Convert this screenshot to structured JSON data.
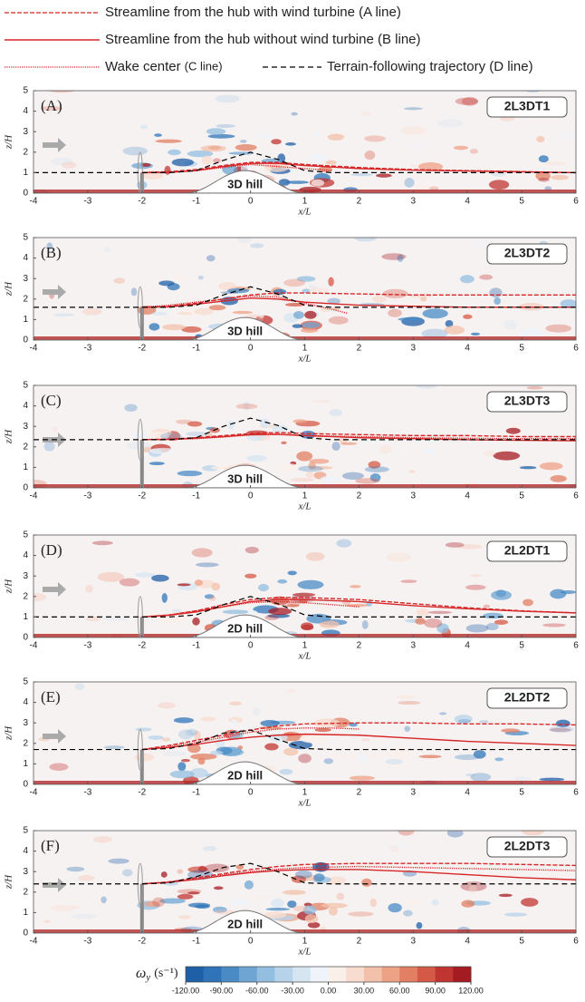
{
  "legend": [
    {
      "name": "Streamline from the hub with wind turbine (A line)",
      "color": "#d62728",
      "dash": "5 2"
    },
    {
      "name": "Streamline from the hub without wind turbine (B line)",
      "color": "#d62728",
      "dash": ""
    },
    {
      "name": "Wake center",
      "suffix": "(C line)",
      "color": "#d62728",
      "dash": "1.2 1.2"
    },
    {
      "name": "Terrain-following trajectory (D line)",
      "color": "#000000",
      "dash": "6 4"
    }
  ],
  "chart_data": [
    {
      "type": "line",
      "panel": "(A)",
      "case": "2L3DT1",
      "hill_label": "3D hill",
      "xlabel": "x/L",
      "ylabel": "z/H",
      "xlim": [
        -4,
        6
      ],
      "ylim": [
        0,
        5
      ],
      "xticks": [
        -4,
        -3,
        -2,
        -1,
        0,
        1,
        2,
        3,
        4,
        5,
        6
      ],
      "yticks": [
        0,
        1,
        2,
        3,
        4,
        5
      ],
      "series": [
        {
          "x": [
            -2,
            -1.5,
            -1,
            -0.5,
            0,
            0.5,
            1,
            2,
            3,
            4,
            5,
            6
          ],
          "values": [
            1,
            1.05,
            1.15,
            1.35,
            1.5,
            1.5,
            1.4,
            1.25,
            1.15,
            1.1,
            1.05,
            1.0
          ]
        },
        {
          "x": [
            -2,
            -1.5,
            -1,
            -0.5,
            0,
            0.5,
            1,
            2,
            3,
            4,
            5,
            6
          ],
          "values": [
            1,
            1.02,
            1.1,
            1.3,
            1.45,
            1.45,
            1.35,
            1.2,
            1.12,
            1.08,
            1.04,
            1.0
          ]
        },
        {
          "x": [
            -2,
            -1.5,
            -1,
            -0.5,
            0,
            0.5,
            1,
            1.5
          ],
          "values": [
            1,
            1.0,
            1.1,
            1.25,
            1.4,
            1.3,
            1.2,
            1.1
          ]
        },
        {
          "x": [
            -4,
            -2,
            -1.5,
            -1,
            -0.5,
            0,
            0.5,
            1,
            1.5,
            2,
            6
          ],
          "values": [
            1,
            1,
            1,
            1.1,
            1.6,
            2.0,
            1.65,
            1.1,
            1,
            1,
            1
          ]
        }
      ]
    },
    {
      "type": "line",
      "panel": "(B)",
      "case": "2L3DT2",
      "hill_label": "3D hill",
      "xlabel": "x/L",
      "ylabel": "z/H",
      "xlim": [
        -4,
        6
      ],
      "ylim": [
        0,
        5
      ],
      "xticks": [
        -4,
        -3,
        -2,
        -1,
        0,
        1,
        2,
        3,
        4,
        5,
        6
      ],
      "yticks": [
        0,
        1,
        2,
        3,
        4,
        5
      ],
      "series": [
        {
          "x": [
            -2,
            -1.5,
            -1,
            -0.5,
            0,
            0.5,
            1,
            2,
            3,
            4,
            5,
            6
          ],
          "values": [
            1.6,
            1.65,
            1.8,
            2.0,
            2.2,
            2.3,
            2.3,
            2.25,
            2.2,
            2.2,
            2.2,
            2.2
          ]
        },
        {
          "x": [
            -2,
            -1.5,
            -1,
            -0.5,
            0,
            0.5,
            1,
            2,
            3,
            4,
            5,
            6
          ],
          "values": [
            1.6,
            1.62,
            1.75,
            1.9,
            2.05,
            2.0,
            1.85,
            1.7,
            1.65,
            1.6,
            1.6,
            1.6
          ]
        },
        {
          "x": [
            -2,
            -1.5,
            -1,
            -0.5,
            0,
            0.5,
            1,
            1.5,
            1.8
          ],
          "values": [
            1.6,
            1.7,
            1.85,
            2.0,
            2.15,
            2.1,
            1.8,
            1.5,
            1.3
          ]
        },
        {
          "x": [
            -4,
            -2,
            -1.5,
            -1,
            -0.5,
            0,
            0.5,
            1,
            1.5,
            2,
            6
          ],
          "values": [
            1.6,
            1.6,
            1.6,
            1.7,
            2.2,
            2.6,
            2.25,
            1.7,
            1.6,
            1.6,
            1.6
          ]
        }
      ]
    },
    {
      "type": "line",
      "panel": "(C)",
      "case": "2L3DT3",
      "hill_label": "3D hill",
      "xlabel": "x/L",
      "ylabel": "z/H",
      "xlim": [
        -4,
        6
      ],
      "ylim": [
        0,
        5
      ],
      "xticks": [
        -4,
        -3,
        -2,
        -1,
        0,
        1,
        2,
        3,
        4,
        5,
        6
      ],
      "yticks": [
        0,
        1,
        2,
        3,
        4,
        5
      ],
      "series": [
        {
          "x": [
            -2,
            -1.5,
            -1,
            -0.5,
            0,
            0.5,
            1,
            2,
            3,
            4,
            5,
            6
          ],
          "values": [
            2.35,
            2.38,
            2.45,
            2.55,
            2.65,
            2.7,
            2.65,
            2.6,
            2.55,
            2.55,
            2.5,
            2.5
          ]
        },
        {
          "x": [
            -2,
            -1.5,
            -1,
            -0.5,
            0,
            0.5,
            1,
            2,
            3,
            4,
            5,
            6
          ],
          "values": [
            2.35,
            2.37,
            2.42,
            2.5,
            2.6,
            2.62,
            2.55,
            2.45,
            2.4,
            2.35,
            2.32,
            2.3
          ]
        },
        {
          "x": [
            -2,
            -1.5,
            -1,
            -0.5,
            0,
            0.5,
            1,
            2,
            3,
            4,
            5,
            6
          ],
          "values": [
            2.35,
            2.36,
            2.4,
            2.48,
            2.58,
            2.6,
            2.55,
            2.5,
            2.45,
            2.42,
            2.4,
            2.4
          ]
        },
        {
          "x": [
            -4,
            -2,
            -1.5,
            -1,
            -0.5,
            0,
            0.5,
            1,
            1.5,
            2,
            6
          ],
          "values": [
            2.35,
            2.35,
            2.35,
            2.45,
            3.0,
            3.4,
            3.05,
            2.45,
            2.35,
            2.35,
            2.35
          ]
        }
      ]
    },
    {
      "type": "line",
      "panel": "(D)",
      "case": "2L2DT1",
      "hill_label": "2D hill",
      "xlabel": "x/L",
      "ylabel": "z/H",
      "xlim": [
        -4,
        6
      ],
      "ylim": [
        0,
        5
      ],
      "xticks": [
        -4,
        -3,
        -2,
        -1,
        0,
        1,
        2,
        3,
        4,
        5,
        6
      ],
      "yticks": [
        0,
        1,
        2,
        3,
        4,
        5
      ],
      "series": [
        {
          "x": [
            -2,
            -1.5,
            -1,
            -0.5,
            0,
            0.5,
            1,
            2,
            3,
            4,
            5,
            6
          ],
          "values": [
            1,
            1.1,
            1.3,
            1.6,
            1.85,
            1.95,
            1.95,
            1.85,
            1.65,
            1.45,
            1.3,
            1.2
          ]
        },
        {
          "x": [
            -2,
            -1.5,
            -1,
            -0.5,
            0,
            0.5,
            1,
            2,
            3,
            4,
            5,
            6
          ],
          "values": [
            1,
            1.08,
            1.25,
            1.5,
            1.75,
            1.85,
            1.85,
            1.75,
            1.55,
            1.4,
            1.28,
            1.2
          ]
        },
        {
          "x": [
            -2,
            -1.5,
            -1,
            -0.5,
            0,
            0.5,
            1,
            1.5,
            2
          ],
          "values": [
            1,
            1.1,
            1.3,
            1.5,
            1.7,
            1.75,
            1.7,
            1.6,
            1.5
          ]
        },
        {
          "x": [
            -4,
            -2,
            -1.5,
            -1,
            -0.5,
            0,
            0.5,
            1,
            1.5,
            2,
            6
          ],
          "values": [
            1,
            1,
            1,
            1.1,
            1.6,
            2.0,
            1.65,
            1.1,
            1,
            1,
            1
          ]
        }
      ]
    },
    {
      "type": "line",
      "panel": "(E)",
      "case": "2L2DT2",
      "hill_label": "2D hill",
      "xlabel": "x/L",
      "ylabel": "z/H",
      "xlim": [
        -4,
        6
      ],
      "ylim": [
        0,
        5
      ],
      "xticks": [
        -4,
        -3,
        -2,
        -1,
        0,
        1,
        2,
        3,
        4,
        5,
        6
      ],
      "yticks": [
        0,
        1,
        2,
        3,
        4,
        5
      ],
      "series": [
        {
          "x": [
            -2,
            -1.5,
            -1,
            -0.5,
            0,
            0.5,
            1,
            2,
            3,
            4,
            5,
            6
          ],
          "values": [
            1.7,
            1.9,
            2.15,
            2.4,
            2.65,
            2.85,
            2.95,
            3.0,
            3.0,
            2.95,
            2.95,
            2.9
          ]
        },
        {
          "x": [
            -2,
            -1.5,
            -1,
            -0.5,
            0,
            0.5,
            1,
            2,
            3,
            4,
            5,
            6
          ],
          "values": [
            1.7,
            1.8,
            1.95,
            2.15,
            2.3,
            2.4,
            2.45,
            2.4,
            2.25,
            2.1,
            2.0,
            1.9
          ]
        },
        {
          "x": [
            -2,
            -1.5,
            -1,
            -0.5,
            0,
            0.5,
            1,
            1.5,
            2
          ],
          "values": [
            1.7,
            1.85,
            2.05,
            2.3,
            2.55,
            2.7,
            2.75,
            2.75,
            2.7
          ]
        },
        {
          "x": [
            -4,
            -2,
            -1.5,
            -1,
            -0.5,
            0,
            0.5,
            1,
            1.5,
            2,
            6
          ],
          "values": [
            1.7,
            1.7,
            1.75,
            2.0,
            2.5,
            2.65,
            2.2,
            1.75,
            1.7,
            1.7,
            1.7
          ]
        }
      ]
    },
    {
      "type": "line",
      "panel": "(F)",
      "case": "2L2DT3",
      "hill_label": "2D hill",
      "xlabel": "x/L",
      "ylabel": "z/H",
      "xlim": [
        -4,
        6
      ],
      "ylim": [
        0,
        5
      ],
      "xticks": [
        -4,
        -3,
        -2,
        -1,
        0,
        1,
        2,
        3,
        4,
        5,
        6
      ],
      "yticks": [
        0,
        1,
        2,
        3,
        4,
        5
      ],
      "series": [
        {
          "x": [
            -2,
            -1.5,
            -1,
            -0.5,
            0,
            0.5,
            1,
            2,
            3,
            4,
            5,
            6
          ],
          "values": [
            2.4,
            2.5,
            2.7,
            2.9,
            3.1,
            3.25,
            3.35,
            3.4,
            3.4,
            3.4,
            3.35,
            3.3
          ]
        },
        {
          "x": [
            -2,
            -1.5,
            -1,
            -0.5,
            0,
            0.5,
            1,
            2,
            3,
            4,
            5,
            6
          ],
          "values": [
            2.4,
            2.48,
            2.62,
            2.8,
            2.95,
            3.05,
            3.1,
            3.1,
            3.0,
            2.85,
            2.7,
            2.6
          ]
        },
        {
          "x": [
            -2,
            -1.5,
            -1,
            -0.5,
            0,
            0.5,
            1,
            2,
            3,
            4,
            5,
            6
          ],
          "values": [
            2.4,
            2.48,
            2.65,
            2.85,
            3.0,
            3.12,
            3.2,
            3.25,
            3.2,
            3.15,
            3.1,
            3.05
          ]
        },
        {
          "x": [
            -4,
            -2,
            -1.5,
            -1,
            -0.5,
            0,
            0.5,
            1,
            1.5,
            2,
            6
          ],
          "values": [
            2.4,
            2.4,
            2.45,
            2.75,
            3.2,
            3.4,
            3.0,
            2.45,
            2.4,
            2.4,
            2.4
          ]
        }
      ]
    }
  ],
  "colorbar": {
    "label_symbol": "ω",
    "label_subscript": "y",
    "label_unit": "(s⁻¹)",
    "lim": [
      -120,
      120
    ],
    "ticks": [
      {
        "value": -120,
        "label": "-120.00"
      },
      {
        "value": -90,
        "label": "-90.00"
      },
      {
        "value": -60,
        "label": "-60.00"
      },
      {
        "value": -30,
        "label": "-30.00"
      },
      {
        "value": 0,
        "label": "0.00"
      },
      {
        "value": 30,
        "label": "30.00"
      },
      {
        "value": 60,
        "label": "60.00"
      },
      {
        "value": 90,
        "label": "90.00"
      },
      {
        "value": 120,
        "label": "120.00"
      }
    ],
    "colors": [
      "#1f5fa8",
      "#2f74b8",
      "#4a8bc6",
      "#6ea5d3",
      "#93bedf",
      "#b7d3ea",
      "#d5e5f2",
      "#eef4f9",
      "#fbefe9",
      "#f8dccf",
      "#f3c1ab",
      "#eda286",
      "#e27f63",
      "#d45a47",
      "#c03532",
      "#a51b22"
    ]
  }
}
